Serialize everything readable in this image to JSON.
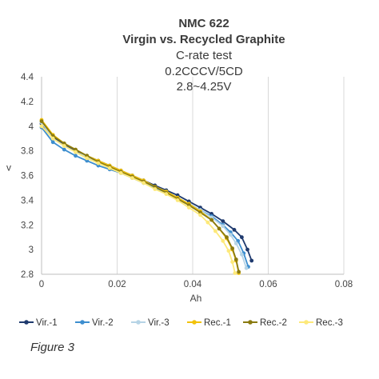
{
  "caption": "Figure 3",
  "chart_data": {
    "type": "line",
    "title": [
      "NMC 622",
      "Virgin vs. Recycled Graphite"
    ],
    "subtitle": [
      "C-rate test",
      "0.2CCCV/5CD",
      "2.8~4.25V"
    ],
    "xlabel": "Ah",
    "ylabel": "v",
    "xlim": [
      0,
      0.08
    ],
    "ylim": [
      2.8,
      4.4
    ],
    "xticks": [
      "0",
      "0.02",
      "0.04",
      "0.06",
      "0.08"
    ],
    "yticks": [
      "2.8",
      "3",
      "3.2",
      "3.4",
      "3.6",
      "3.8",
      "4",
      "4.2",
      "4.4"
    ],
    "grid": "vertical",
    "legend_position": "bottom",
    "series": [
      {
        "name": "Vir.-1",
        "color": "#1f3a6e",
        "x": [
          0,
          0.003,
          0.006,
          0.009,
          0.012,
          0.015,
          0.018,
          0.021,
          0.024,
          0.027,
          0.03,
          0.033,
          0.036,
          0.039,
          0.042,
          0.045,
          0.048,
          0.051,
          0.053,
          0.0545,
          0.0556
        ],
        "y": [
          4.02,
          3.91,
          3.85,
          3.8,
          3.76,
          3.72,
          3.68,
          3.64,
          3.6,
          3.56,
          3.52,
          3.48,
          3.44,
          3.39,
          3.34,
          3.29,
          3.23,
          3.16,
          3.1,
          3.0,
          2.91
        ]
      },
      {
        "name": "Vir.-2",
        "color": "#3d8ecf",
        "x": [
          0,
          0.003,
          0.006,
          0.009,
          0.012,
          0.015,
          0.018,
          0.021,
          0.024,
          0.027,
          0.03,
          0.033,
          0.036,
          0.039,
          0.042,
          0.045,
          0.048,
          0.05,
          0.052,
          0.0535,
          0.0547
        ],
        "y": [
          3.99,
          3.87,
          3.81,
          3.76,
          3.72,
          3.68,
          3.65,
          3.62,
          3.58,
          3.54,
          3.5,
          3.46,
          3.42,
          3.37,
          3.32,
          3.27,
          3.2,
          3.14,
          3.07,
          2.97,
          2.86
        ]
      },
      {
        "name": "Vir.-3",
        "color": "#b6d4e6",
        "x": [
          0,
          0.003,
          0.006,
          0.009,
          0.012,
          0.015,
          0.018,
          0.021,
          0.024,
          0.027,
          0.03,
          0.033,
          0.036,
          0.039,
          0.042,
          0.045,
          0.048,
          0.05,
          0.0515,
          0.053,
          0.0542
        ],
        "y": [
          4.03,
          3.9,
          3.84,
          3.79,
          3.75,
          3.71,
          3.67,
          3.63,
          3.59,
          3.55,
          3.51,
          3.47,
          3.42,
          3.37,
          3.32,
          3.26,
          3.19,
          3.12,
          3.05,
          2.96,
          2.85
        ]
      },
      {
        "name": "Rec.-1",
        "color": "#f2c20c",
        "x": [
          0,
          0.003,
          0.006,
          0.009,
          0.012,
          0.015,
          0.018,
          0.021,
          0.024,
          0.027,
          0.03,
          0.033,
          0.036,
          0.039,
          0.042,
          0.045,
          0.047,
          0.049,
          0.0505,
          0.0515,
          0.0522
        ],
        "y": [
          4.05,
          3.93,
          3.86,
          3.81,
          3.76,
          3.72,
          3.68,
          3.64,
          3.6,
          3.56,
          3.51,
          3.47,
          3.42,
          3.37,
          3.31,
          3.24,
          3.17,
          3.09,
          3.0,
          2.91,
          2.81
        ]
      },
      {
        "name": "Rec.-2",
        "color": "#8a7a10",
        "x": [
          0,
          0.003,
          0.006,
          0.009,
          0.012,
          0.015,
          0.018,
          0.021,
          0.024,
          0.027,
          0.03,
          0.033,
          0.036,
          0.039,
          0.042,
          0.045,
          0.047,
          0.049,
          0.0505,
          0.0515,
          0.0522
        ],
        "y": [
          4.04,
          3.92,
          3.86,
          3.81,
          3.76,
          3.71,
          3.67,
          3.63,
          3.59,
          3.55,
          3.51,
          3.46,
          3.41,
          3.36,
          3.3,
          3.24,
          3.17,
          3.1,
          3.01,
          2.92,
          2.82
        ]
      },
      {
        "name": "Rec.-3",
        "color": "#fde97a",
        "x": [
          0,
          0.003,
          0.006,
          0.009,
          0.012,
          0.015,
          0.018,
          0.021,
          0.024,
          0.027,
          0.03,
          0.033,
          0.036,
          0.039,
          0.042,
          0.044,
          0.046,
          0.048,
          0.0495,
          0.0505,
          0.0512
        ],
        "y": [
          4.0,
          3.9,
          3.84,
          3.79,
          3.74,
          3.7,
          3.66,
          3.62,
          3.58,
          3.54,
          3.49,
          3.45,
          3.4,
          3.34,
          3.28,
          3.22,
          3.15,
          3.07,
          2.99,
          2.9,
          2.81
        ]
      }
    ]
  }
}
